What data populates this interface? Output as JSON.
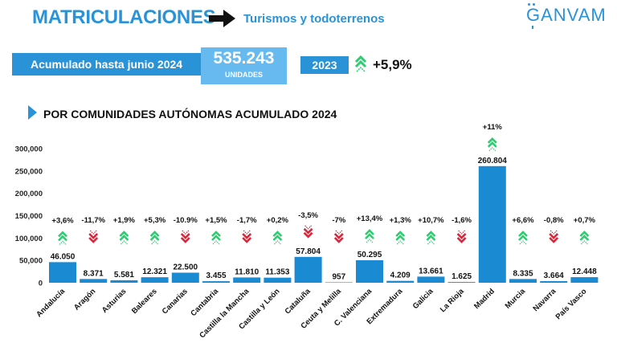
{
  "header": {
    "title": "MATRICULACIONES",
    "subtitle": "Turismos y todoterrenos",
    "brand": "GANVAM"
  },
  "summary": {
    "accumulated_label": "Acumulado hasta junio 2024",
    "units_value": "535.243",
    "units_label": "UNIDADES",
    "year": "2023",
    "change": "+5,9%"
  },
  "section": {
    "title": "POR COMUNIDADES AUTÓNOMAS ACUMULADO 2024"
  },
  "colors": {
    "brand_blue": "#2a93d8",
    "light_blue": "#66baf0",
    "bar": "#1a8ad3",
    "up": "#2ecc71",
    "down": "#d9263b"
  },
  "chart_data": {
    "type": "bar",
    "ylim": [
      0,
      300000
    ],
    "yticks": [
      0,
      50000,
      100000,
      150000,
      200000,
      250000,
      300000
    ],
    "ytick_labels": [
      "0",
      "50,000",
      "100,000",
      "150,000",
      "200,000",
      "250,000",
      "300,000"
    ],
    "grid": false,
    "categories": [
      "Andalucía",
      "Aragón",
      "Asturias",
      "Baleares",
      "Canarias",
      "Cantabria",
      "Castilla la Mancha",
      "Castilla y León",
      "Cataluña",
      "Ceuta y Melilla",
      "C. Valenciana",
      "Extremadura",
      "Galicia",
      "La Rioja",
      "Madrid",
      "Murcia",
      "Navarra",
      "País Vasco"
    ],
    "values": [
      46050,
      8371,
      5581,
      12321,
      22500,
      3455,
      11810,
      11353,
      57804,
      957,
      50295,
      4209,
      13661,
      1625,
      260804,
      8335,
      3664,
      12448
    ],
    "value_labels": [
      "46.050",
      "8.371",
      "5.581",
      "12.321",
      "22.500",
      "3.455",
      "11.810",
      "11.353",
      "57.804",
      "957",
      "50.295",
      "4.209",
      "13.661",
      "1.625",
      "260.804",
      "8.335",
      "3.664",
      "12.448"
    ],
    "change_labels": [
      "+3,6%",
      "-11,7%",
      "+1,9%",
      "+5,3%",
      "-10.9%",
      "+1,5%",
      "-1,7%",
      "+0,2%",
      "-3,5%",
      "-7%",
      "+13,4%",
      "+1,3%",
      "+10,7%",
      "-1,6%",
      "+11%",
      "+6,6%",
      "-0,8%",
      "+0,7%"
    ],
    "directions": [
      "up",
      "down",
      "up",
      "up",
      "down",
      "up",
      "down",
      "up",
      "down",
      "down",
      "up",
      "up",
      "up",
      "down",
      "up",
      "up",
      "down",
      "up"
    ]
  }
}
